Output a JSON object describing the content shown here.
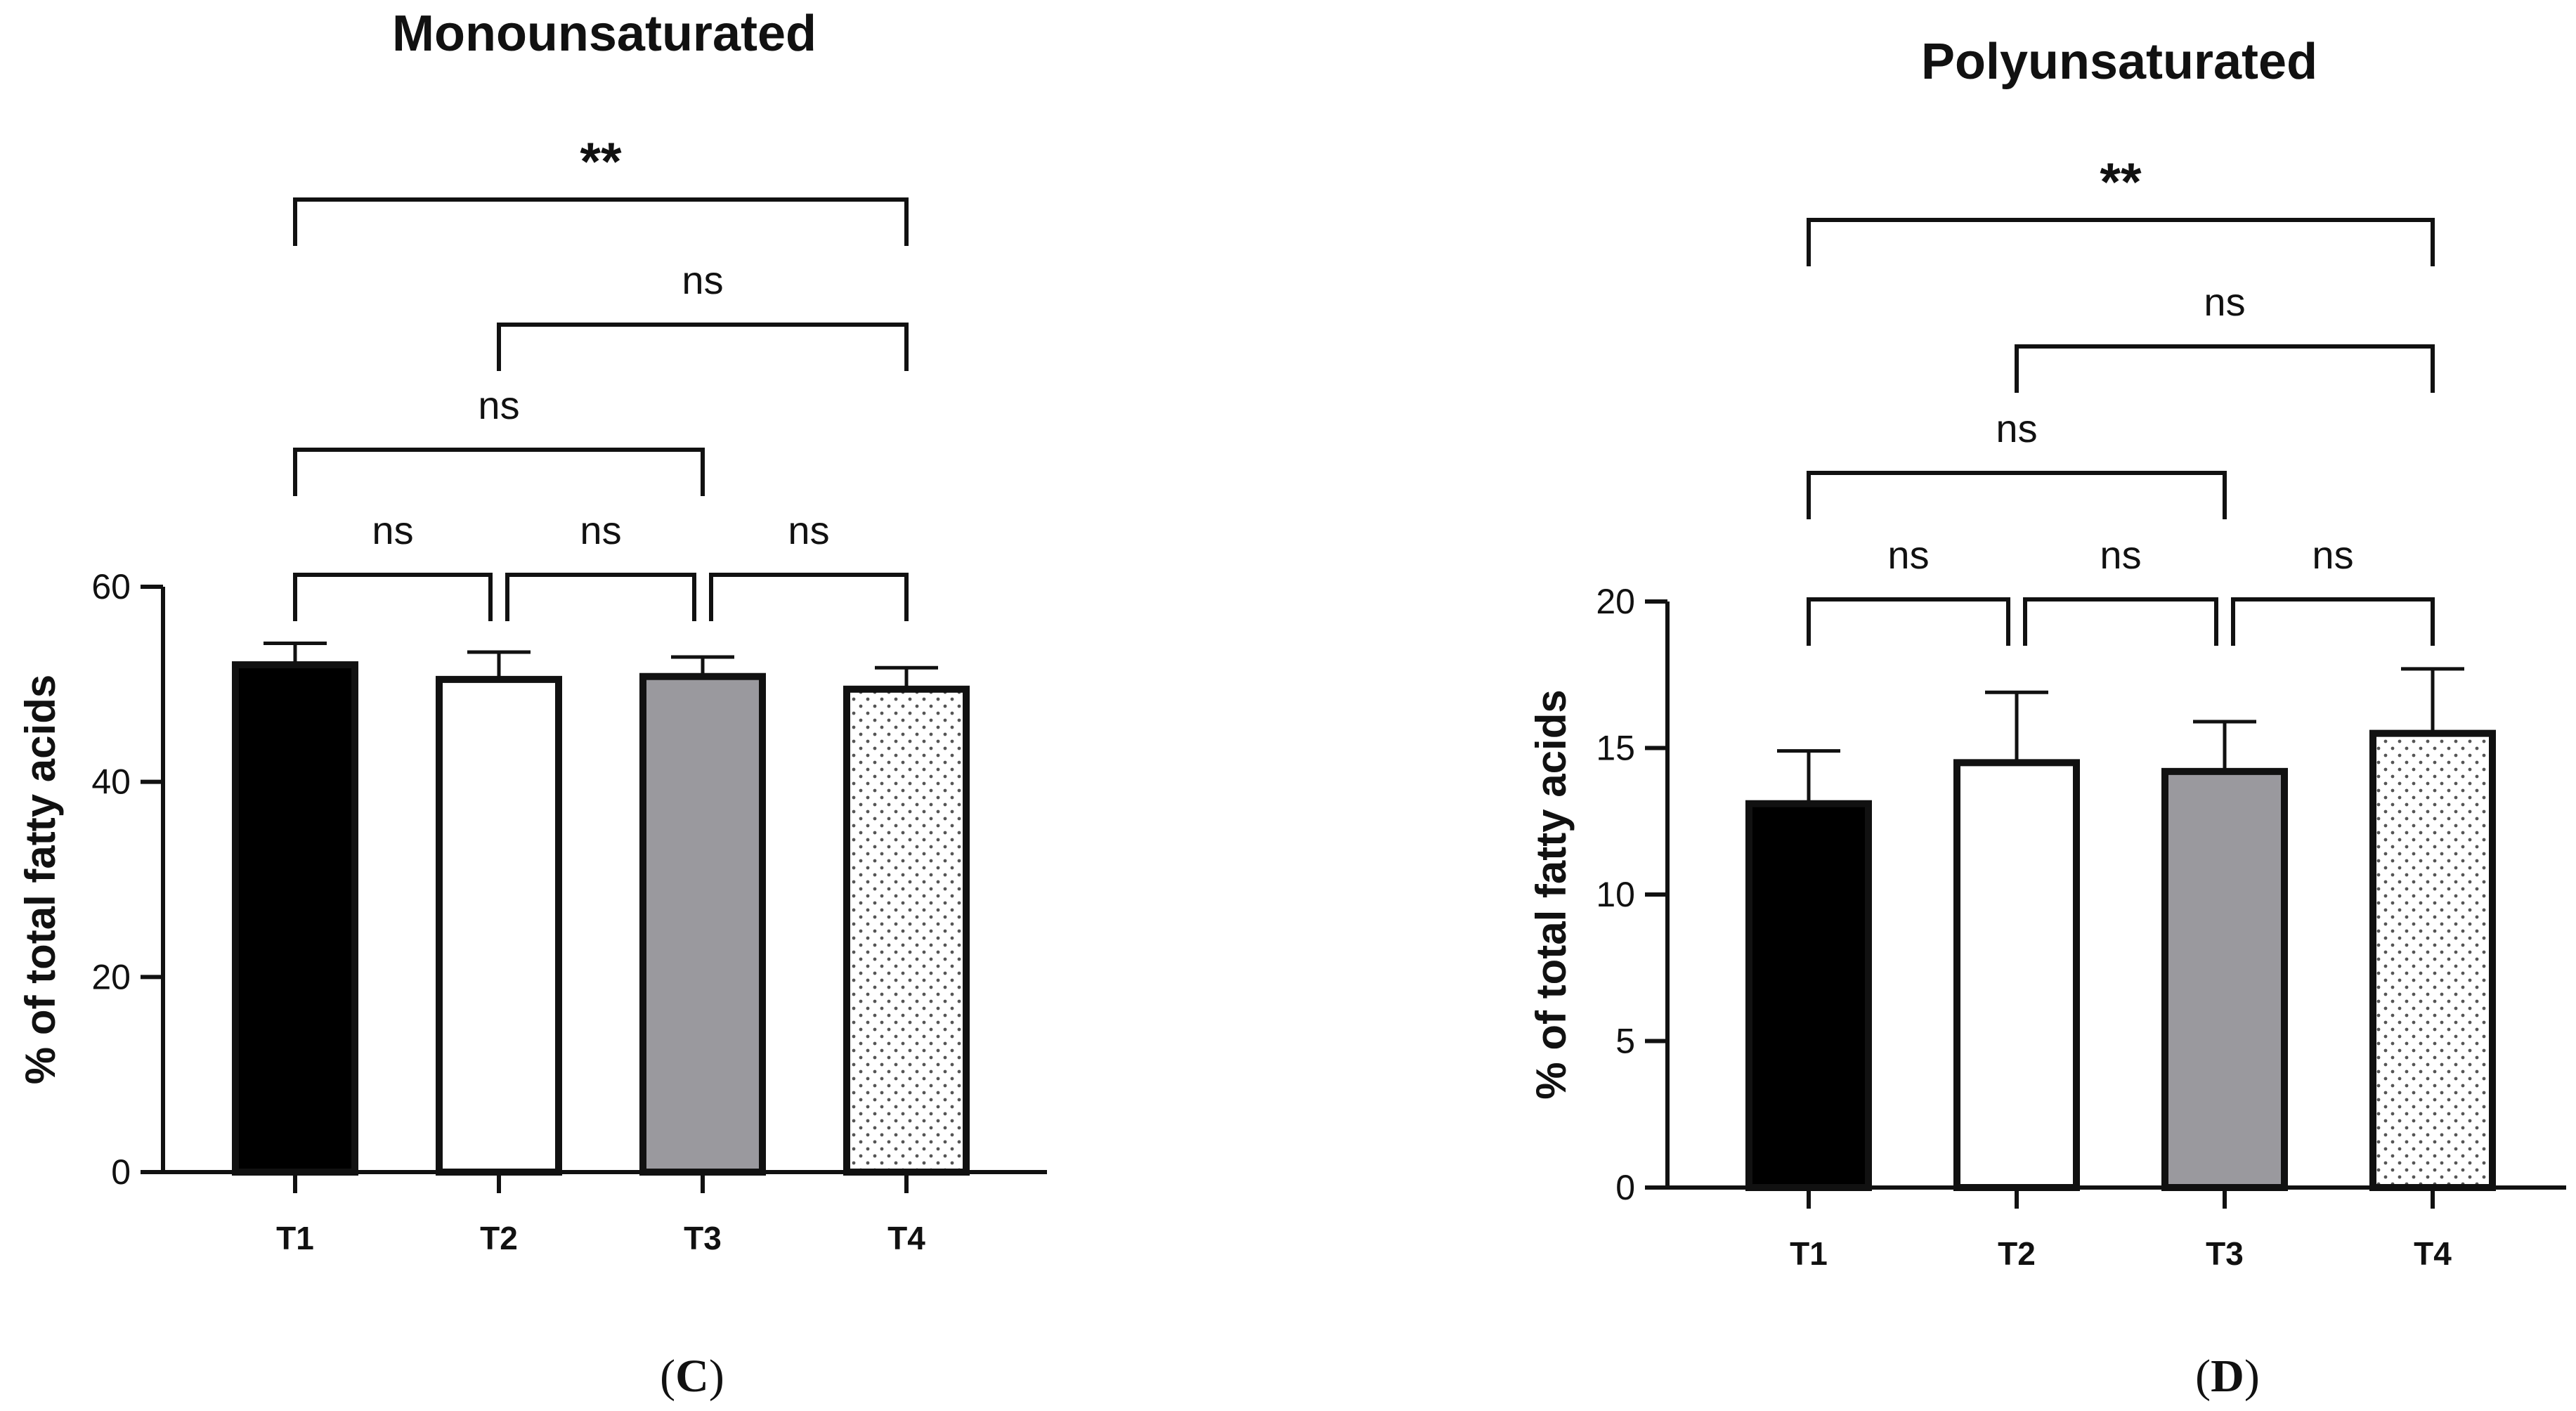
{
  "chart_data": [
    {
      "type": "bar",
      "panel": "(C)",
      "panel_letter": "C",
      "title": "Monounsaturated",
      "xlabel": "",
      "ylabel": "% of total fatty acids",
      "ylim": [
        0,
        60
      ],
      "yticks": [
        0,
        20,
        40,
        60
      ],
      "categories": [
        "T1",
        "T2",
        "T3",
        "T4"
      ],
      "values": [
        52,
        50.5,
        50.8,
        49.5
      ],
      "errors": [
        2.2,
        2.8,
        2.0,
        2.2
      ],
      "fills": [
        "solid-black",
        "white",
        "gray",
        "dotted"
      ],
      "comparisons": [
        {
          "from": "T1",
          "to": "T2",
          "label": "ns",
          "level": 1
        },
        {
          "from": "T2",
          "to": "T3",
          "label": "ns",
          "level": 1
        },
        {
          "from": "T3",
          "to": "T4",
          "label": "ns",
          "level": 1
        },
        {
          "from": "T1",
          "to": "T3",
          "label": "ns",
          "level": 2
        },
        {
          "from": "T2",
          "to": "T4",
          "label": "ns",
          "level": 3
        },
        {
          "from": "T1",
          "to": "T4",
          "label": "**",
          "level": 4
        }
      ]
    },
    {
      "type": "bar",
      "panel": "(D)",
      "panel_letter": "D",
      "title": "Polyunsaturated",
      "xlabel": "",
      "ylabel": "% of total fatty acids",
      "ylim": [
        0,
        20
      ],
      "yticks": [
        0,
        5,
        10,
        15,
        20
      ],
      "categories": [
        "T1",
        "T2",
        "T3",
        "T4"
      ],
      "values": [
        13.1,
        14.5,
        14.2,
        15.5
      ],
      "errors": [
        1.8,
        2.4,
        1.7,
        2.2
      ],
      "fills": [
        "solid-black",
        "white",
        "gray",
        "dotted"
      ],
      "comparisons": [
        {
          "from": "T1",
          "to": "T2",
          "label": "ns",
          "level": 1
        },
        {
          "from": "T2",
          "to": "T3",
          "label": "ns",
          "level": 1
        },
        {
          "from": "T3",
          "to": "T4",
          "label": "ns",
          "level": 1
        },
        {
          "from": "T1",
          "to": "T3",
          "label": "ns",
          "level": 2
        },
        {
          "from": "T2",
          "to": "T4",
          "label": "ns",
          "level": 3
        },
        {
          "from": "T1",
          "to": "T4",
          "label": "**",
          "level": 4
        }
      ]
    }
  ],
  "colors": {
    "ink": "#111111",
    "black_fill": "#000000",
    "white_fill": "#ffffff",
    "gray_fill": "#9a999e",
    "dot_fill": "#555555"
  }
}
